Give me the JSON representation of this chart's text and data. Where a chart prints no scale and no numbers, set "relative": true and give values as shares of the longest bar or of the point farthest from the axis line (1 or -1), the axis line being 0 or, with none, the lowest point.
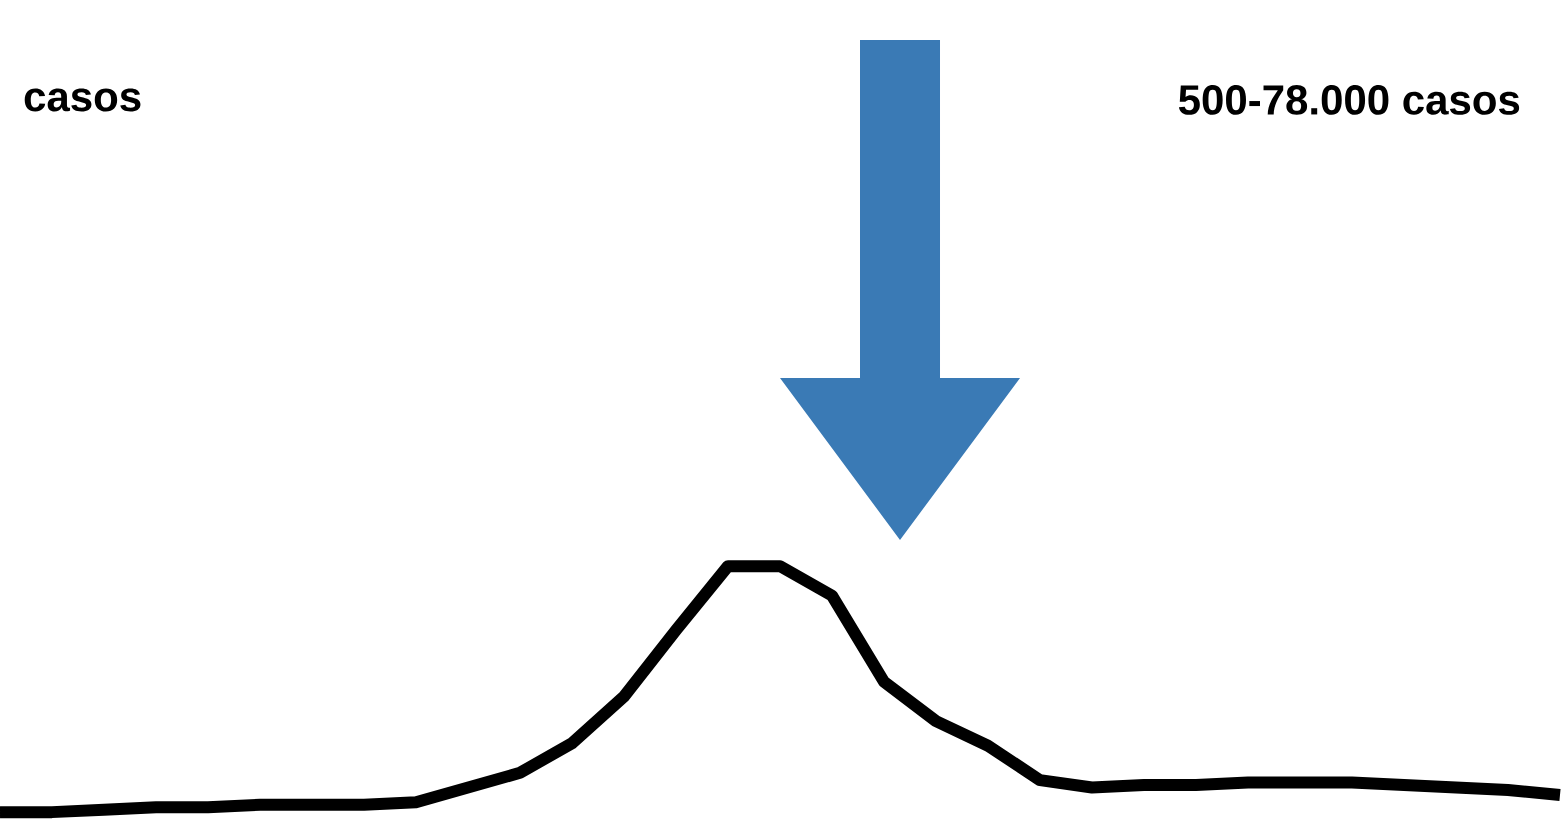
{
  "chart_data": {
    "type": "line",
    "relative": true,
    "color": "#000000",
    "categories": [
      null,
      null,
      null,
      null,
      null,
      null,
      null,
      null,
      null,
      null,
      null,
      null,
      null,
      null,
      null,
      null,
      null,
      null,
      null,
      null,
      null,
      null,
      null,
      null,
      null,
      null,
      null,
      null,
      null,
      null,
      null
    ],
    "values": [
      0,
      0,
      0.01,
      0.02,
      0.02,
      0.03,
      0.03,
      0.03,
      0.04,
      0.1,
      0.16,
      0.28,
      0.47,
      0.74,
      1,
      1,
      0.88,
      0.53,
      0.37,
      0.27,
      0.13,
      0.1,
      0.11,
      0.11,
      0.12,
      0.12,
      0.12,
      0.11,
      0.1,
      0.09,
      0.07
    ],
    "marker": "none",
    "line_style": "solid",
    "annotations": [
      "casos",
      "500-78.000 casos"
    ]
  }
}
